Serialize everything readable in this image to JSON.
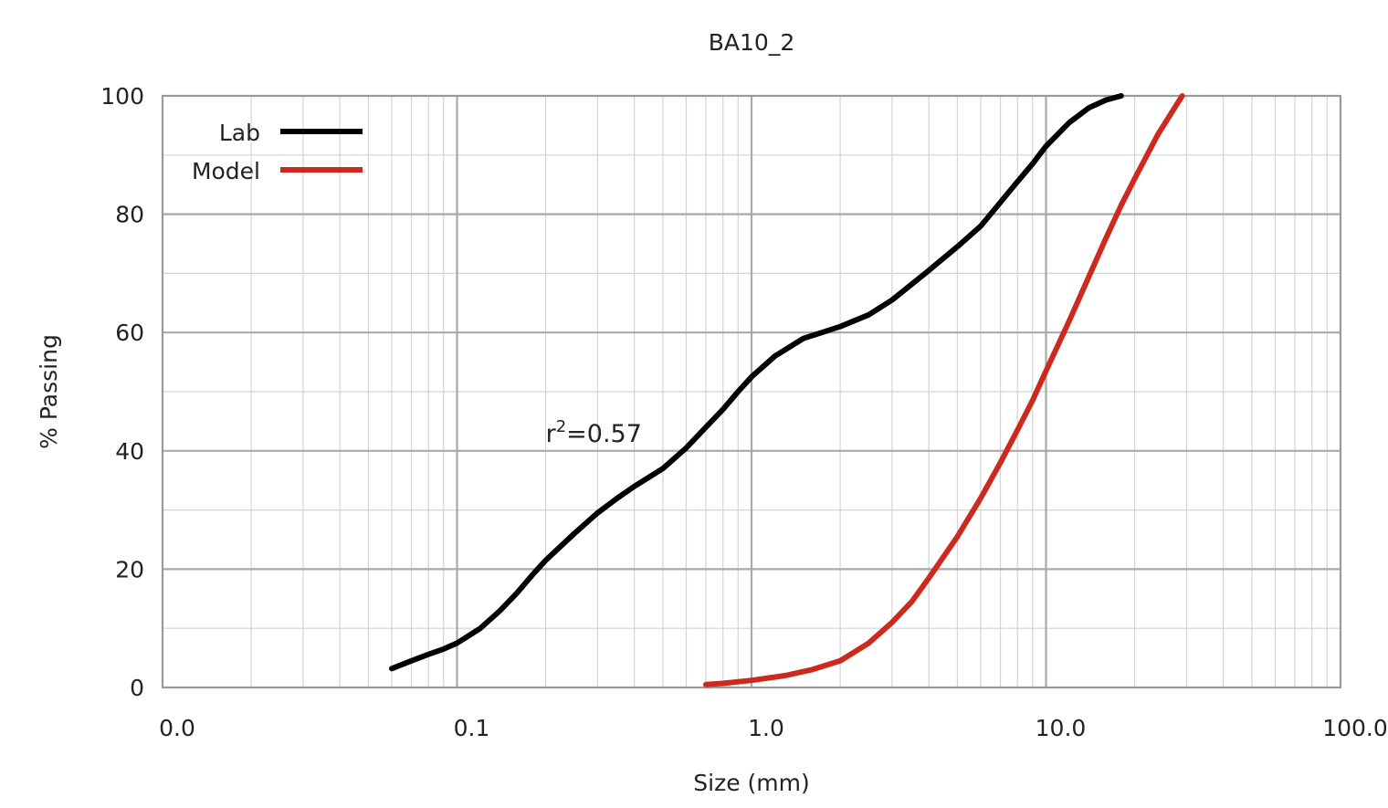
{
  "chart_data": {
    "type": "line",
    "title": "BA10_2",
    "xlabel": "Size (mm)",
    "ylabel": "% Passing",
    "x_scale": "log",
    "xlim": [
      0.01,
      100
    ],
    "ylim": [
      0,
      100
    ],
    "x_ticks": [
      0.01,
      0.1,
      1,
      10,
      100
    ],
    "x_tick_labels": [
      "0.0",
      "0.1",
      "1.0",
      "10.0",
      "100.0"
    ],
    "y_ticks": [
      0,
      20,
      40,
      60,
      80,
      100
    ],
    "y_tick_labels": [
      "0",
      "20",
      "40",
      "60",
      "80",
      "100"
    ],
    "grid": true,
    "legend_position": "top-left",
    "series": [
      {
        "name": "Lab",
        "color": "#000000",
        "points": [
          [
            0.06,
            3.2
          ],
          [
            0.07,
            4.5
          ],
          [
            0.08,
            5.6
          ],
          [
            0.09,
            6.5
          ],
          [
            0.1,
            7.5
          ],
          [
            0.12,
            10
          ],
          [
            0.14,
            13
          ],
          [
            0.16,
            16
          ],
          [
            0.18,
            19
          ],
          [
            0.2,
            21.5
          ],
          [
            0.25,
            26
          ],
          [
            0.3,
            29.5
          ],
          [
            0.35,
            32
          ],
          [
            0.4,
            34
          ],
          [
            0.5,
            37
          ],
          [
            0.6,
            40.5
          ],
          [
            0.7,
            44
          ],
          [
            0.8,
            47
          ],
          [
            0.9,
            50
          ],
          [
            1.0,
            52.5
          ],
          [
            1.2,
            56
          ],
          [
            1.5,
            59
          ],
          [
            2.0,
            61
          ],
          [
            2.5,
            63
          ],
          [
            3.0,
            65.5
          ],
          [
            4.0,
            70.5
          ],
          [
            5.0,
            74.5
          ],
          [
            6.0,
            78
          ],
          [
            7.0,
            82
          ],
          [
            8.0,
            85.5
          ],
          [
            9.0,
            88.5
          ],
          [
            10.0,
            91.5
          ],
          [
            12.0,
            95.5
          ],
          [
            14.0,
            98
          ],
          [
            16.0,
            99.3
          ],
          [
            18.0,
            100
          ]
        ]
      },
      {
        "name": "Model",
        "color": "#cc2a1e",
        "points": [
          [
            0.7,
            0.5
          ],
          [
            0.8,
            0.7
          ],
          [
            1.0,
            1.2
          ],
          [
            1.3,
            2.0
          ],
          [
            1.6,
            3.0
          ],
          [
            2.0,
            4.5
          ],
          [
            2.5,
            7.5
          ],
          [
            3.0,
            11
          ],
          [
            3.5,
            14.5
          ],
          [
            4.0,
            18.5
          ],
          [
            5.0,
            25.5
          ],
          [
            6.0,
            32
          ],
          [
            7.0,
            38
          ],
          [
            8.0,
            43.5
          ],
          [
            9.0,
            48.5
          ],
          [
            10.0,
            53.5
          ],
          [
            12.0,
            62
          ],
          [
            14.0,
            69.5
          ],
          [
            16.0,
            76
          ],
          [
            18.0,
            81.5
          ],
          [
            20.0,
            86
          ],
          [
            24.0,
            93.5
          ],
          [
            29.0,
            100
          ]
        ]
      }
    ],
    "annotations": [
      {
        "text_base": "r",
        "text_sup": "2",
        "text_rest": "=0.57",
        "x": 0.2,
        "y": 44
      }
    ]
  }
}
